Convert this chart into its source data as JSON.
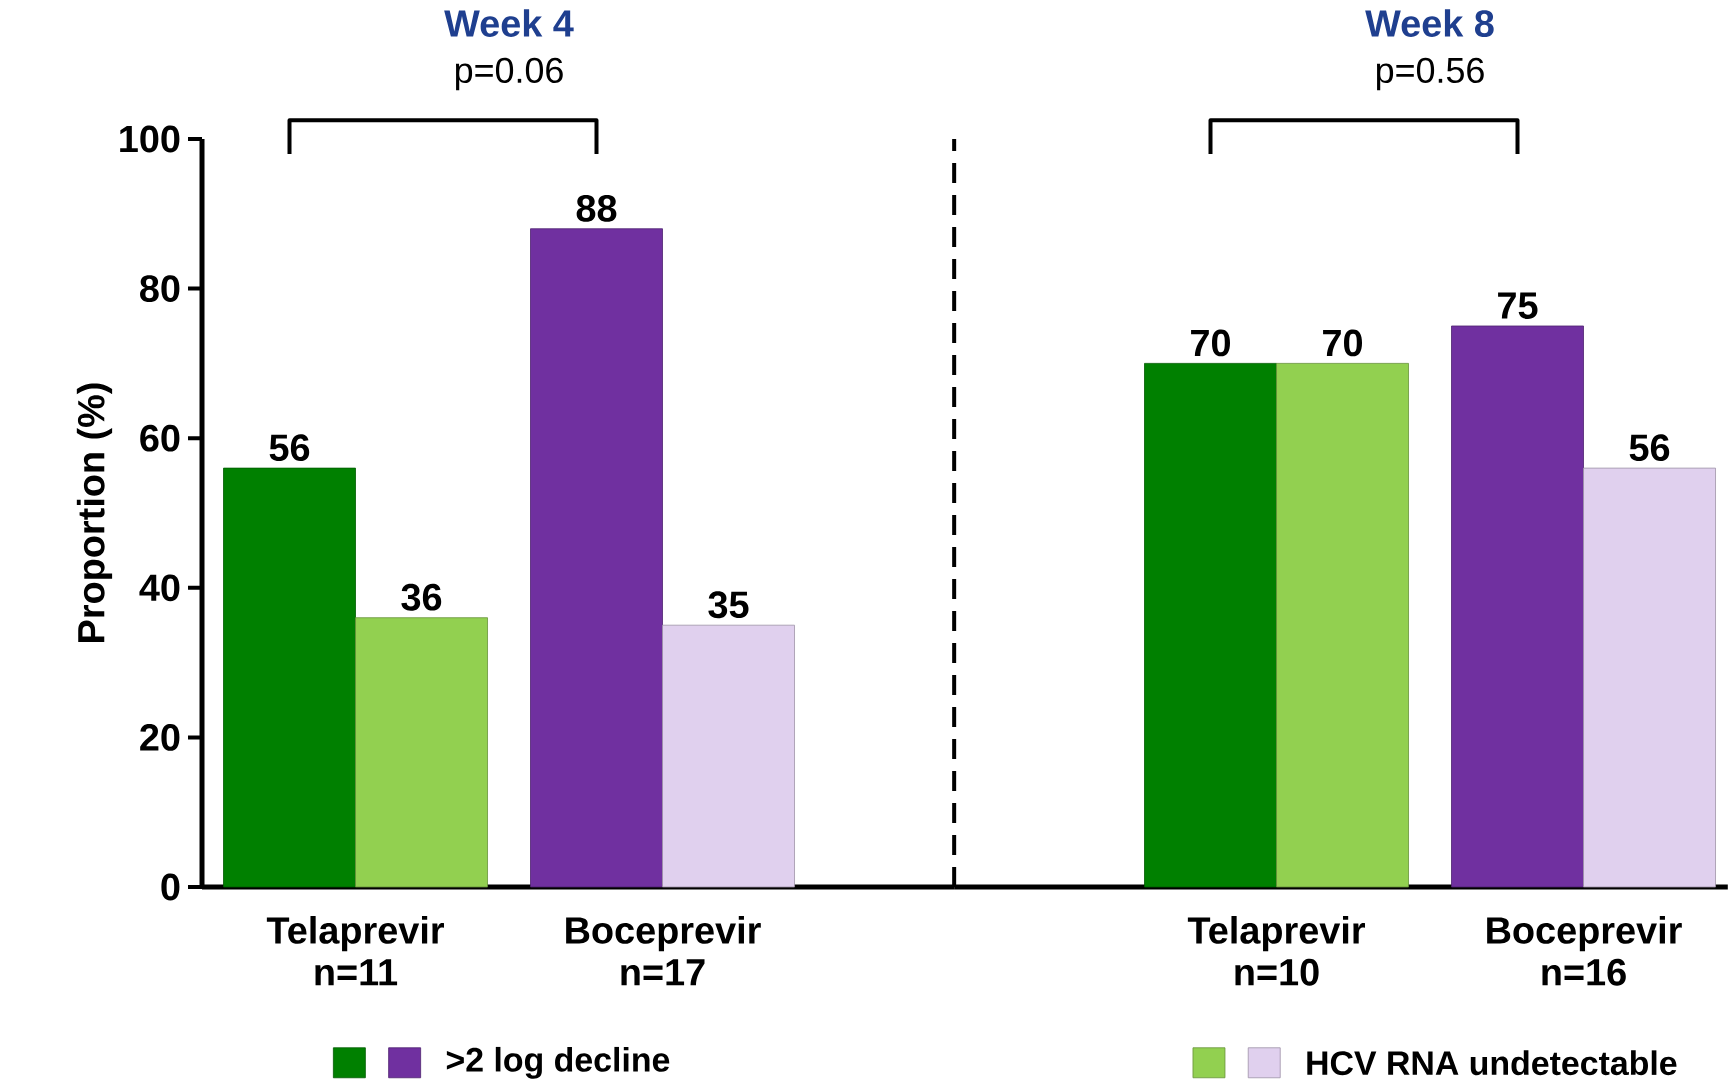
{
  "chart_data": [
    {
      "type": "bar",
      "title": "Week 4",
      "ylabel": "Proportion (%)",
      "categories": [
        "Telaprevir n=11",
        "Boceprevir n=17"
      ],
      "series": [
        {
          "name": ">2 log decline",
          "colors": [
            "#008000",
            "#7030a0"
          ],
          "values": [
            56,
            88
          ]
        },
        {
          "colors": [
            "#92d050",
            "#e0d0ee"
          ],
          "values": [
            36,
            35
          ]
        }
      ],
      "ylim": [
        0,
        100
      ],
      "yticks": [
        0,
        20,
        40,
        60,
        80,
        100
      ],
      "data_labels": true,
      "legend": "bottom",
      "annotations": [
        "p=0.06"
      ]
    },
    {
      "type": "bar",
      "title": "Week 8",
      "categories": [
        "Telaprevir n=10",
        "Boceprevir n=16"
      ],
      "series": [
        {
          "colors": [
            "#008000",
            "#7030a0"
          ],
          "values": [
            70,
            75
          ]
        },
        {
          "name": "HCV RNA undetectable",
          "colors": [
            "#92d050",
            "#e0d0ee"
          ],
          "values": [
            70,
            56
          ]
        }
      ],
      "ylim": [
        0,
        100
      ],
      "tick_labels": "x",
      "data_labels": true,
      "legend": "bottom",
      "annotations": [
        "p=0.56"
      ]
    }
  ]
}
